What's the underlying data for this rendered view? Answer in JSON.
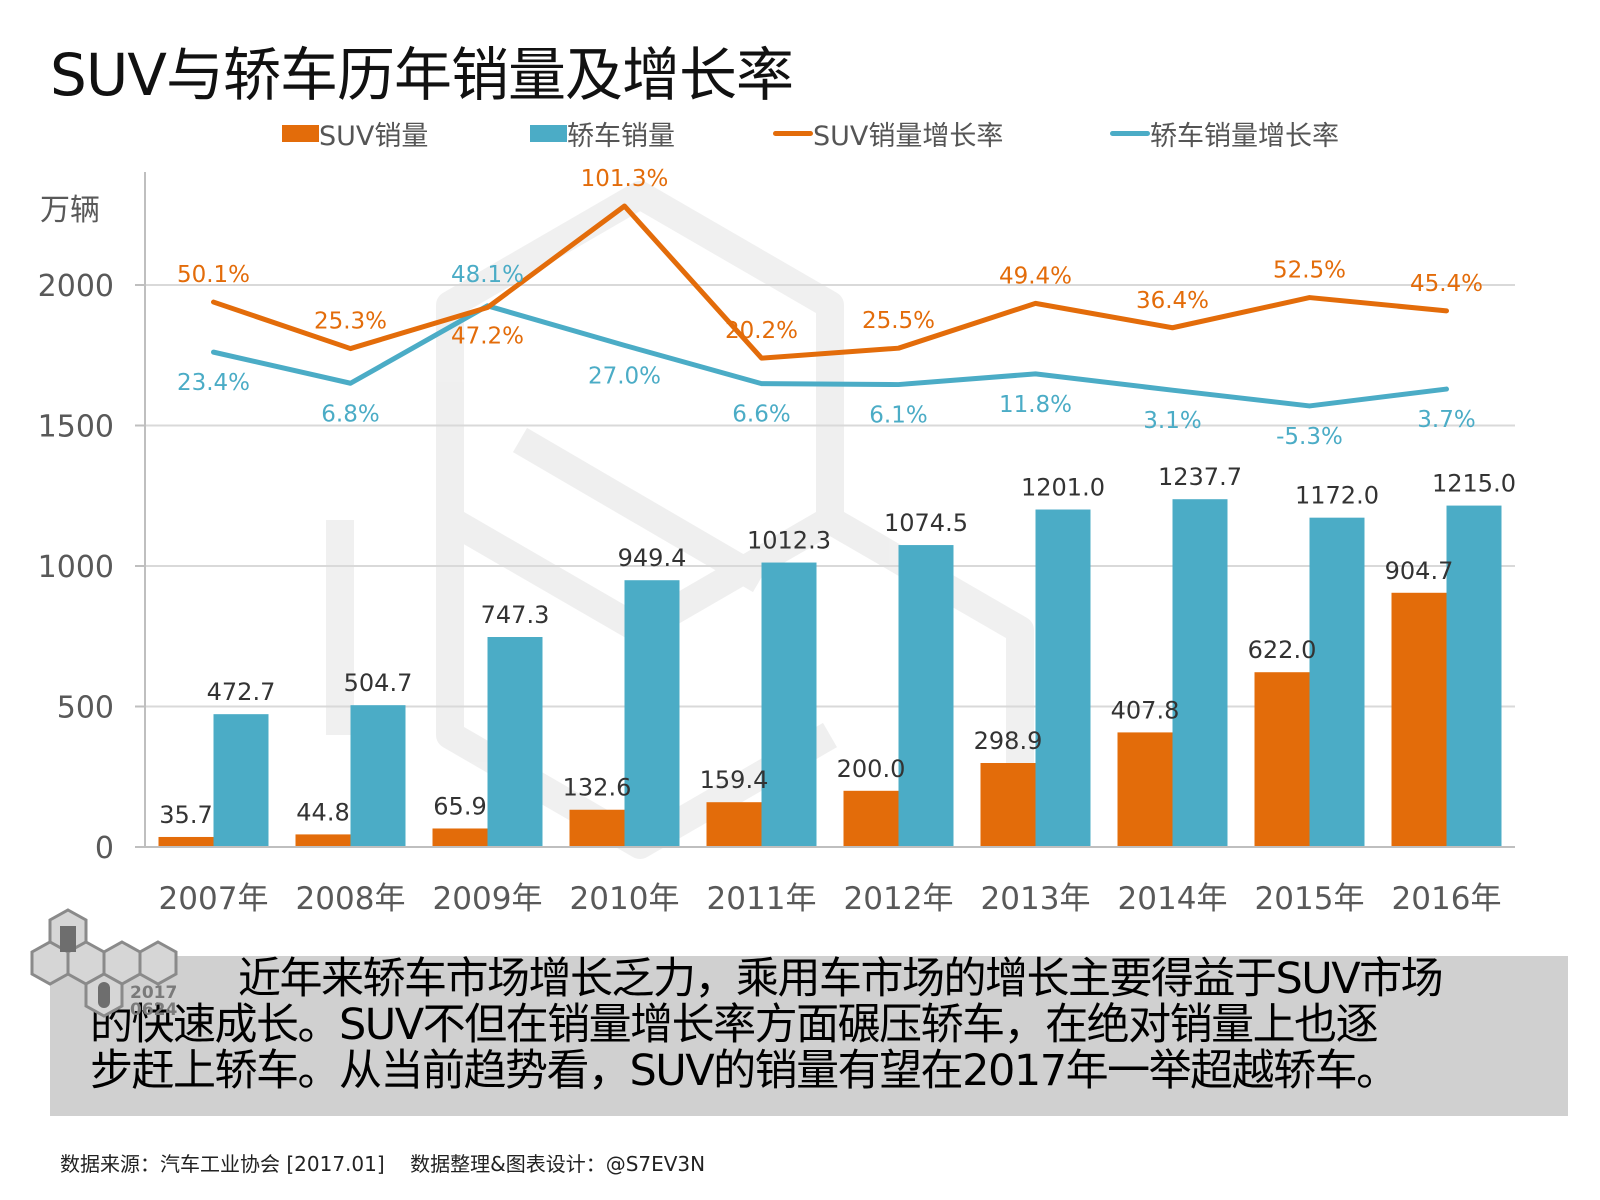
{
  "title": "SUV与轿车历年销量及增长率",
  "legend": [
    {
      "label": "SUV销量",
      "type": "bar",
      "color": "#E36C0A"
    },
    {
      "label": "轿车销量",
      "type": "bar",
      "color": "#4BACC6"
    },
    {
      "label": "SUV销量增长率",
      "type": "line",
      "color": "#E36C0A"
    },
    {
      "label": "轿车销量增长率",
      "type": "line",
      "color": "#4BACC6"
    }
  ],
  "colors": {
    "suv": "#E36C0A",
    "sedan": "#4BACC6",
    "axis_text": "#595959",
    "grid": "#D9D9D9",
    "label_text": "#333333"
  },
  "chart_data": {
    "type": "bar",
    "title": "SUV与轿车历年销量及增长率",
    "ylabel": "万辆",
    "xlabel": "",
    "ylim": [
      0,
      2000
    ],
    "yticks": [
      0,
      500,
      1000,
      1500,
      2000
    ],
    "grid": true,
    "legend_position": "top",
    "categories": [
      "2007年",
      "2008年",
      "2009年",
      "2010年",
      "2011年",
      "2012年",
      "2013年",
      "2014年",
      "2015年",
      "2016年"
    ],
    "series": [
      {
        "name": "SUV销量",
        "type": "bar",
        "axis": "primary",
        "color": "#E36C0A",
        "values": [
          35.7,
          44.8,
          65.9,
          132.6,
          159.4,
          200.0,
          298.9,
          407.8,
          622.0,
          904.7
        ],
        "labels": [
          "35.7",
          "44.8",
          "65.9",
          "132.6",
          "159.4",
          "200.0",
          "298.9",
          "407.8",
          "622.0",
          "904.7"
        ]
      },
      {
        "name": "轿车销量",
        "type": "bar",
        "axis": "primary",
        "color": "#4BACC6",
        "values": [
          472.7,
          504.7,
          747.3,
          949.4,
          1012.3,
          1074.5,
          1201.0,
          1237.7,
          1172.0,
          1215.0
        ],
        "labels": [
          "472.7",
          "504.7",
          "747.3",
          "949.4",
          "1012.3",
          "1074.5",
          "1201.0",
          "1237.7",
          "1172.0",
          "1215.0"
        ]
      },
      {
        "name": "SUV销量增长率",
        "type": "line",
        "axis": "secondary",
        "unit": "%",
        "color": "#E36C0A",
        "values": [
          50.1,
          25.3,
          47.2,
          101.3,
          20.2,
          25.5,
          49.4,
          36.4,
          52.5,
          45.4
        ],
        "labels": [
          "50.1%",
          "25.3%",
          "47.2%",
          "101.3%",
          "20.2%",
          "25.5%",
          "49.4%",
          "36.4%",
          "52.5%",
          "45.4%"
        ]
      },
      {
        "name": "轿车销量增长率",
        "type": "line",
        "axis": "secondary",
        "unit": "%",
        "color": "#4BACC6",
        "values": [
          23.4,
          6.8,
          48.1,
          27.0,
          6.6,
          6.1,
          11.8,
          3.1,
          -5.3,
          3.7
        ],
        "labels": [
          "23.4%",
          "6.8%",
          "48.1%",
          "27.0%",
          "6.6%",
          "6.1%",
          "11.8%",
          "3.1%",
          "-5.3%",
          "3.7%"
        ]
      }
    ]
  },
  "summary": {
    "lines": [
      "近年来轿车市场增长乏力，乘用车市场的增长主要得益于SUV市场",
      "的快速成长。SUV不但在销量增长率方面碾压轿车，在绝对销量上也逐",
      "步赶上轿车。从当前趋势看，SUV的销量有望在2017年一举超越轿车。"
    ]
  },
  "logo": {
    "text": "S7EV3N",
    "date_line1": "2017",
    "date_line2": "0624"
  },
  "footer": {
    "text": "数据来源：汽车工业协会 [2017.01]    数据整理&图表设计：@S7EV3N"
  }
}
